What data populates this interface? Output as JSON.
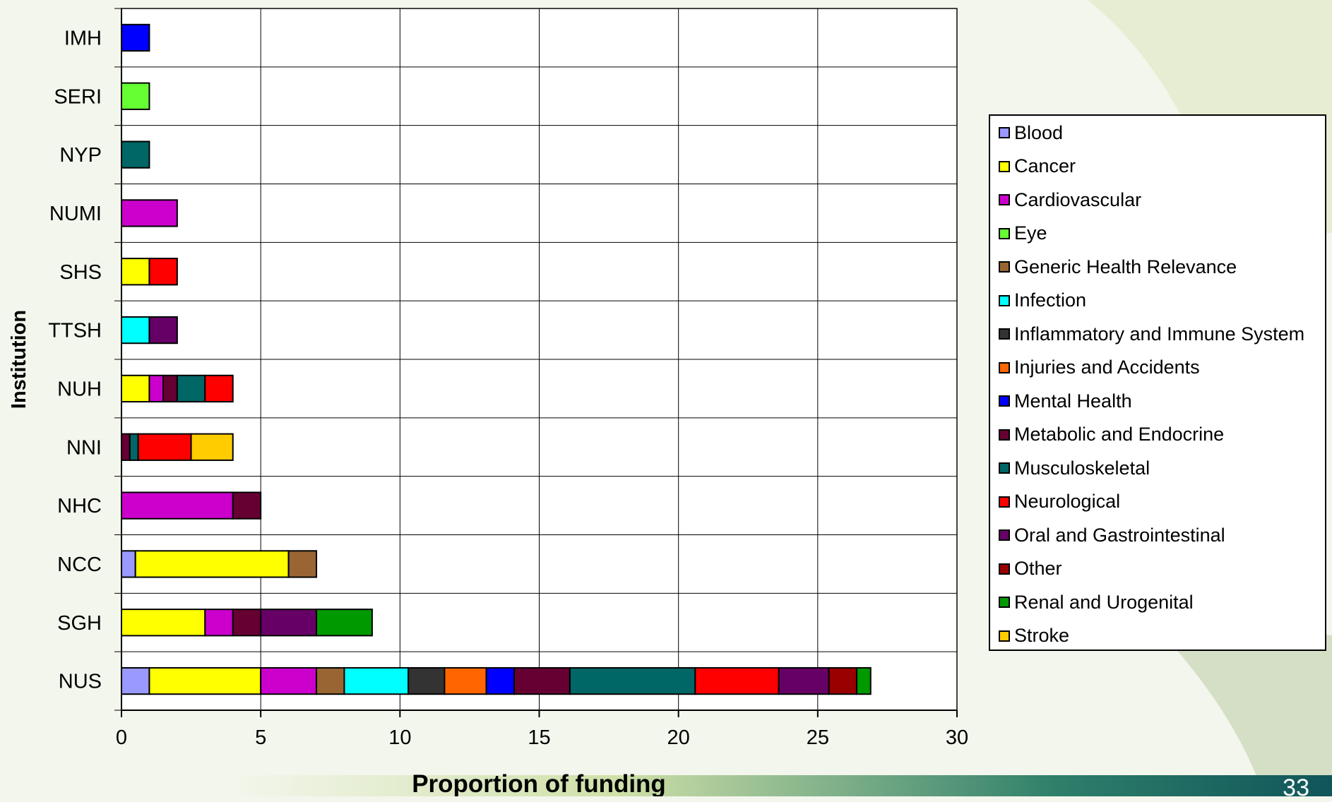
{
  "page": {
    "page_number": "33"
  },
  "chart_data": {
    "type": "bar",
    "orientation": "horizontal",
    "stacked": true,
    "title": "",
    "xlabel": "Proportion of funding",
    "ylabel": "Institution",
    "xlim": [
      0,
      30
    ],
    "x_ticks": [
      "0",
      "5",
      "10",
      "15",
      "20",
      "25",
      "30"
    ],
    "grid": true,
    "legend_position": "right",
    "categories": [
      "IMH",
      "SERI",
      "NYP",
      "NUMI",
      "SHS",
      "TTSH",
      "NUH",
      "NNI",
      "NHC",
      "NCC",
      "SGH",
      "NUS"
    ],
    "series": [
      {
        "name": "Blood",
        "color": "#9999ff",
        "values": [
          0,
          0,
          0,
          0,
          0,
          0,
          0,
          0,
          0,
          0.5,
          0,
          1
        ]
      },
      {
        "name": "Cancer",
        "color": "#ffff00",
        "values": [
          0,
          0,
          0,
          0,
          1,
          0,
          1,
          0,
          0,
          5.5,
          3,
          4
        ]
      },
      {
        "name": "Cardiovascular",
        "color": "#cc00cc",
        "values": [
          0,
          0,
          0,
          2,
          0,
          0,
          0.5,
          0,
          4,
          0,
          1,
          2
        ]
      },
      {
        "name": "Eye",
        "color": "#66ff33",
        "values": [
          0,
          1,
          0,
          0,
          0,
          0,
          0,
          0,
          0,
          0,
          0,
          0
        ]
      },
      {
        "name": "Generic Health Relevance",
        "color": "#996633",
        "values": [
          0,
          0,
          0,
          0,
          0,
          0,
          0,
          0,
          0,
          1,
          0,
          1
        ]
      },
      {
        "name": "Infection",
        "color": "#00ffff",
        "values": [
          0,
          0,
          0,
          0,
          0,
          1,
          0,
          0,
          0,
          0,
          0,
          2.3
        ]
      },
      {
        "name": "Inflammatory and Immune System",
        "color": "#333333",
        "values": [
          0,
          0,
          0,
          0,
          0,
          0,
          0,
          0,
          0,
          0,
          0,
          1.3
        ]
      },
      {
        "name": "Injuries and Accidents",
        "color": "#ff6600",
        "values": [
          0,
          0,
          0,
          0,
          0,
          0,
          0,
          0,
          0,
          0,
          0,
          1.5
        ]
      },
      {
        "name": "Mental Health",
        "color": "#0000ff",
        "values": [
          1,
          0,
          0,
          0,
          0,
          0,
          0,
          0,
          0,
          0,
          0,
          1
        ]
      },
      {
        "name": "Metabolic and Endocrine",
        "color": "#660033",
        "values": [
          0,
          0,
          0,
          0,
          0,
          0,
          0.5,
          0.3,
          1,
          0,
          1,
          2
        ]
      },
      {
        "name": "Musculoskeletal",
        "color": "#006666",
        "values": [
          0,
          0,
          1,
          0,
          0,
          0,
          1,
          0.3,
          0,
          0,
          0,
          4.5
        ]
      },
      {
        "name": "Neurological",
        "color": "#ff0000",
        "values": [
          0,
          0,
          0,
          0,
          1,
          0,
          1,
          1.9,
          0,
          0,
          0,
          3
        ]
      },
      {
        "name": "Oral and Gastrointestinal",
        "color": "#660066",
        "values": [
          0,
          0,
          0,
          0,
          0,
          1,
          0,
          0,
          0,
          0,
          2,
          1.8
        ]
      },
      {
        "name": "Other",
        "color": "#990000",
        "values": [
          0,
          0,
          0,
          0,
          0,
          0,
          0,
          0,
          0,
          0,
          0,
          1
        ]
      },
      {
        "name": "Renal and Urogenital",
        "color": "#009900",
        "values": [
          0,
          0,
          0,
          0,
          0,
          0,
          0,
          0,
          0,
          0,
          2,
          0.5
        ]
      },
      {
        "name": "Stroke",
        "color": "#ffcc00",
        "values": [
          0,
          0,
          0,
          0,
          0,
          0,
          0,
          1.5,
          0,
          0,
          0,
          0
        ]
      }
    ]
  }
}
